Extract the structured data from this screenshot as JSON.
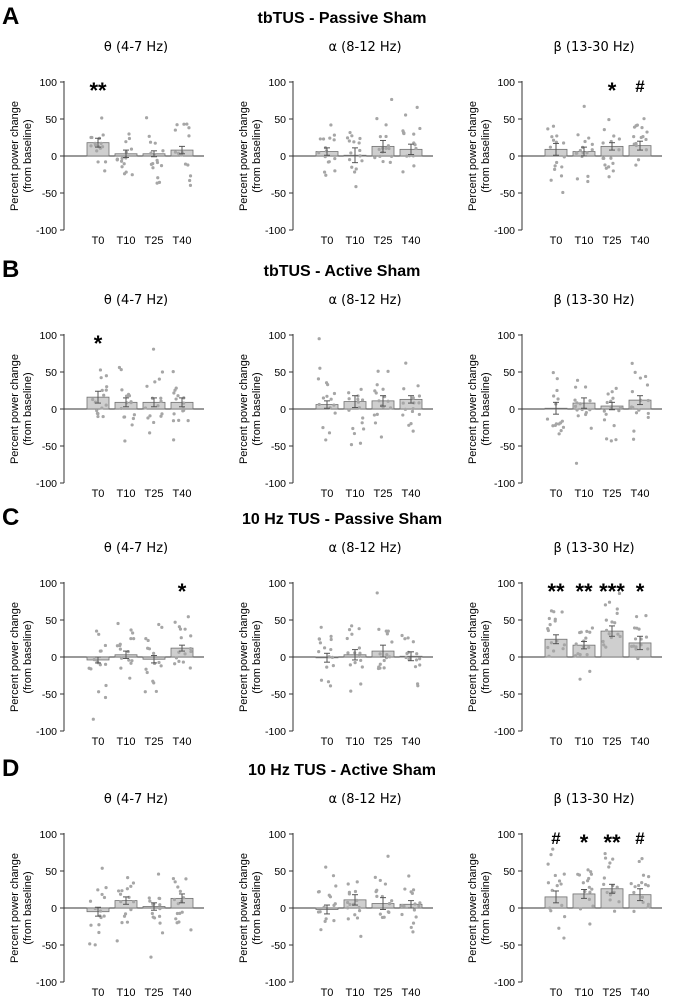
{
  "figure": {
    "panels": [
      {
        "letter": "A",
        "title": "tbTUS - Passive Sham"
      },
      {
        "letter": "B",
        "title": "tbTUS - Active Sham"
      },
      {
        "letter": "C",
        "title": "10 Hz TUS - Passive Sham"
      },
      {
        "letter": "D",
        "title": "10 Hz TUS - Active Sham"
      }
    ],
    "band_labels": [
      "θ  (4-7 Hz)",
      "α  (8-12 Hz)",
      "β  (13-30 Hz)"
    ],
    "ylabel_line1": "Percent power change",
    "ylabel_line2": "(from baseline)",
    "categories": [
      "T0",
      "T10",
      "T25",
      "T40"
    ],
    "yticks": [
      100,
      50,
      0,
      -50,
      -100
    ]
  },
  "colors": {
    "bar_fill": "#cfcfcf",
    "bar_stroke": "#707070",
    "dot": "#a6a6a6",
    "axis": "#333333",
    "text": "#000000"
  },
  "chart_data": [
    {
      "type": "bar",
      "panel": "A",
      "band": "θ  (4-7 Hz)",
      "categories": [
        "T0",
        "T10",
        "T25",
        "T40"
      ],
      "ylim": [
        -100,
        100
      ],
      "values": [
        18,
        3,
        3,
        8
      ],
      "errors": [
        6,
        5,
        4,
        5
      ],
      "annotations": [
        "**",
        "",
        "",
        ""
      ]
    },
    {
      "type": "bar",
      "panel": "A",
      "band": "α  (8-12 Hz)",
      "categories": [
        "T0",
        "T10",
        "T25",
        "T40"
      ],
      "ylim": [
        -100,
        100
      ],
      "values": [
        6,
        1,
        13,
        9
      ],
      "errors": [
        5,
        10,
        8,
        7
      ],
      "annotations": [
        "",
        "",
        "",
        ""
      ]
    },
    {
      "type": "bar",
      "panel": "A",
      "band": "β  (13-30 Hz)",
      "categories": [
        "T0",
        "T10",
        "T25",
        "T40"
      ],
      "ylim": [
        -100,
        100
      ],
      "values": [
        9,
        6,
        13,
        14
      ],
      "errors": [
        8,
        6,
        5,
        6
      ],
      "annotations": [
        "",
        "",
        "*",
        "#"
      ]
    },
    {
      "type": "bar",
      "panel": "B",
      "band": "θ  (4-7 Hz)",
      "categories": [
        "T0",
        "T10",
        "T25",
        "T40"
      ],
      "ylim": [
        -100,
        100
      ],
      "values": [
        16,
        9,
        9,
        9
      ],
      "errors": [
        8,
        6,
        6,
        6
      ],
      "annotations": [
        "*",
        "",
        "",
        ""
      ]
    },
    {
      "type": "bar",
      "panel": "B",
      "band": "α  (8-12 Hz)",
      "categories": [
        "T0",
        "T10",
        "T25",
        "T40"
      ],
      "ylim": [
        -100,
        100
      ],
      "values": [
        6,
        10,
        11,
        13
      ],
      "errors": [
        5,
        8,
        7,
        5
      ],
      "annotations": [
        "",
        "",
        "",
        ""
      ]
    },
    {
      "type": "bar",
      "panel": "B",
      "band": "β  (13-30 Hz)",
      "categories": [
        "T0",
        "T10",
        "T25",
        "T40"
      ],
      "ylim": [
        -100,
        100
      ],
      "values": [
        1,
        8,
        4,
        12
      ],
      "errors": [
        8,
        7,
        5,
        6
      ],
      "annotations": [
        "",
        "",
        "",
        ""
      ]
    },
    {
      "type": "bar",
      "panel": "C",
      "band": "θ  (4-7 Hz)",
      "categories": [
        "T0",
        "T10",
        "T25",
        "T40"
      ],
      "ylim": [
        -100,
        100
      ],
      "values": [
        -4,
        3,
        -3,
        12
      ],
      "errors": [
        4,
        5,
        5,
        4
      ],
      "annotations": [
        "",
        "",
        "",
        "*"
      ]
    },
    {
      "type": "bar",
      "panel": "C",
      "band": "α  (8-12 Hz)",
      "categories": [
        "T0",
        "T10",
        "T25",
        "T40"
      ],
      "ylim": [
        -100,
        100
      ],
      "values": [
        -1,
        3,
        8,
        1
      ],
      "errors": [
        6,
        7,
        8,
        6
      ],
      "annotations": [
        "",
        "",
        "",
        ""
      ]
    },
    {
      "type": "bar",
      "panel": "C",
      "band": "β  (13-30 Hz)",
      "categories": [
        "T0",
        "T10",
        "T25",
        "T40"
      ],
      "ylim": [
        -100,
        100
      ],
      "values": [
        24,
        16,
        35,
        19
      ],
      "errors": [
        6,
        5,
        7,
        9
      ],
      "annotations": [
        "**",
        "**",
        "***",
        "*"
      ]
    },
    {
      "type": "bar",
      "panel": "D",
      "band": "θ  (4-7 Hz)",
      "categories": [
        "T0",
        "T10",
        "T25",
        "T40"
      ],
      "ylim": [
        -100,
        100
      ],
      "values": [
        -5,
        10,
        2,
        13
      ],
      "errors": [
        6,
        5,
        5,
        6
      ],
      "annotations": [
        "",
        "",
        "",
        ""
      ]
    },
    {
      "type": "bar",
      "panel": "D",
      "band": "α  (8-12 Hz)",
      "categories": [
        "T0",
        "T10",
        "T25",
        "T40"
      ],
      "ylim": [
        -100,
        100
      ],
      "values": [
        -2,
        11,
        6,
        5
      ],
      "errors": [
        6,
        7,
        8,
        5
      ],
      "annotations": [
        "",
        "",
        "",
        ""
      ]
    },
    {
      "type": "bar",
      "panel": "D",
      "band": "β  (13-30 Hz)",
      "categories": [
        "T0",
        "T10",
        "T25",
        "T40"
      ],
      "ylim": [
        -100,
        100
      ],
      "values": [
        15,
        19,
        26,
        18
      ],
      "errors": [
        8,
        6,
        6,
        8
      ],
      "annotations": [
        "#",
        "*",
        "**",
        "#"
      ]
    }
  ]
}
